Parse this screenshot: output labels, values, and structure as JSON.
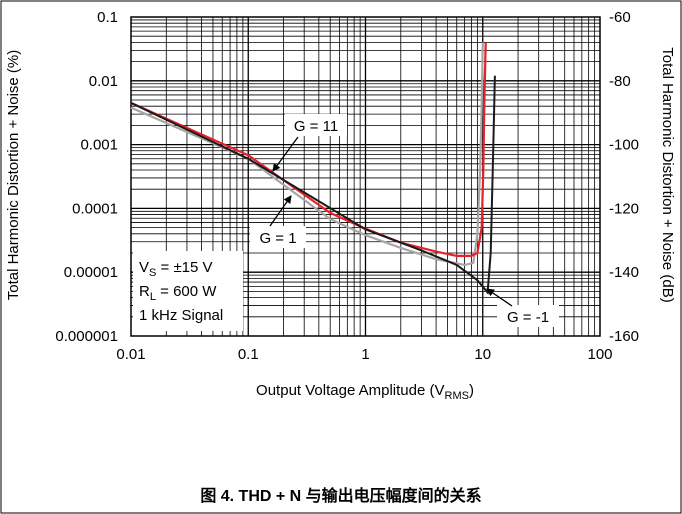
{
  "caption": "图 4. THD + N 与输出电压幅度间的关系",
  "chart_data": {
    "type": "line",
    "xlabel_main": "Output Voltage Amplitude (V",
    "xlabel_sub": "RMS",
    "xlabel_end": ")",
    "ylabel_left": "Total Harmonic Distortion + Noise (%)",
    "ylabel_right": "Total Harmonic Distortion + Noise (dB)",
    "x_scale": "log",
    "y_scale": "log",
    "xlim": [
      0.01,
      100
    ],
    "ylim": [
      1e-06,
      0.1
    ],
    "y2lim": [
      -160,
      -60
    ],
    "grid": true,
    "x_ticks": [
      {
        "value": 0.01,
        "label": "0.01"
      },
      {
        "value": 0.1,
        "label": "0.1"
      },
      {
        "value": 1,
        "label": "1"
      },
      {
        "value": 10,
        "label": "10"
      },
      {
        "value": 100,
        "label": "100"
      }
    ],
    "y_ticks": [
      {
        "value": 0.1,
        "label": "0.1"
      },
      {
        "value": 0.01,
        "label": "0.01"
      },
      {
        "value": 0.001,
        "label": "0.001"
      },
      {
        "value": 0.0001,
        "label": "0.0001"
      },
      {
        "value": 1e-05,
        "label": "0.00001"
      },
      {
        "value": 1e-06,
        "label": "0.000001"
      }
    ],
    "y2_ticks": [
      {
        "value": -60,
        "label": "-60"
      },
      {
        "value": -80,
        "label": "-80"
      },
      {
        "value": -100,
        "label": "-100"
      },
      {
        "value": -120,
        "label": "-120"
      },
      {
        "value": -140,
        "label": "-140"
      },
      {
        "value": -160,
        "label": "-160"
      }
    ],
    "series": [
      {
        "name": "G = 1",
        "color": "#a6a6a6",
        "x": [
          0.01,
          0.1,
          0.5,
          1,
          2,
          4,
          7,
          8.3,
          9.0,
          9.5,
          9.8,
          10.0
        ],
        "y": [
          0.0038,
          0.0006,
          6.8e-05,
          3.8e-05,
          2.4e-05,
          1.6e-05,
          1.3e-05,
          1.4e-05,
          4e-05,
          0.0004,
          0.004,
          0.04
        ]
      },
      {
        "name": "G = 11",
        "color": "#e8202a",
        "x": [
          0.01,
          0.1,
          0.5,
          1,
          2,
          4,
          6,
          8,
          9,
          9.8,
          10.1,
          10.3,
          10.6
        ],
        "y": [
          0.0045,
          0.00068,
          8.5e-05,
          4.8e-05,
          2.9e-05,
          2.1e-05,
          1.8e-05,
          1.8e-05,
          2e-05,
          5e-05,
          0.0004,
          0.004,
          0.04
        ]
      },
      {
        "name": "G = -1",
        "color": "#1a1a1a",
        "x": [
          0.01,
          0.1,
          1,
          3,
          6,
          9,
          11,
          11.7,
          12.2,
          12.7
        ],
        "y": [
          0.0045,
          0.0006,
          4.7e-05,
          2.2e-05,
          1.3e-05,
          7.5e-06,
          4.8e-06,
          2e-05,
          0.0005,
          0.012
        ]
      }
    ],
    "annotations": [
      {
        "text": "G = 11"
      },
      {
        "text": "G = 1"
      },
      {
        "text": "G = -1"
      }
    ],
    "conditions": {
      "line1_main": "V",
      "line1_sub": "S",
      "line1_rest": " = ±15 V",
      "line2_main": "R",
      "line2_sub": "L",
      "line2_rest": " = 600 W",
      "line3": "1 kHz Signal"
    }
  }
}
